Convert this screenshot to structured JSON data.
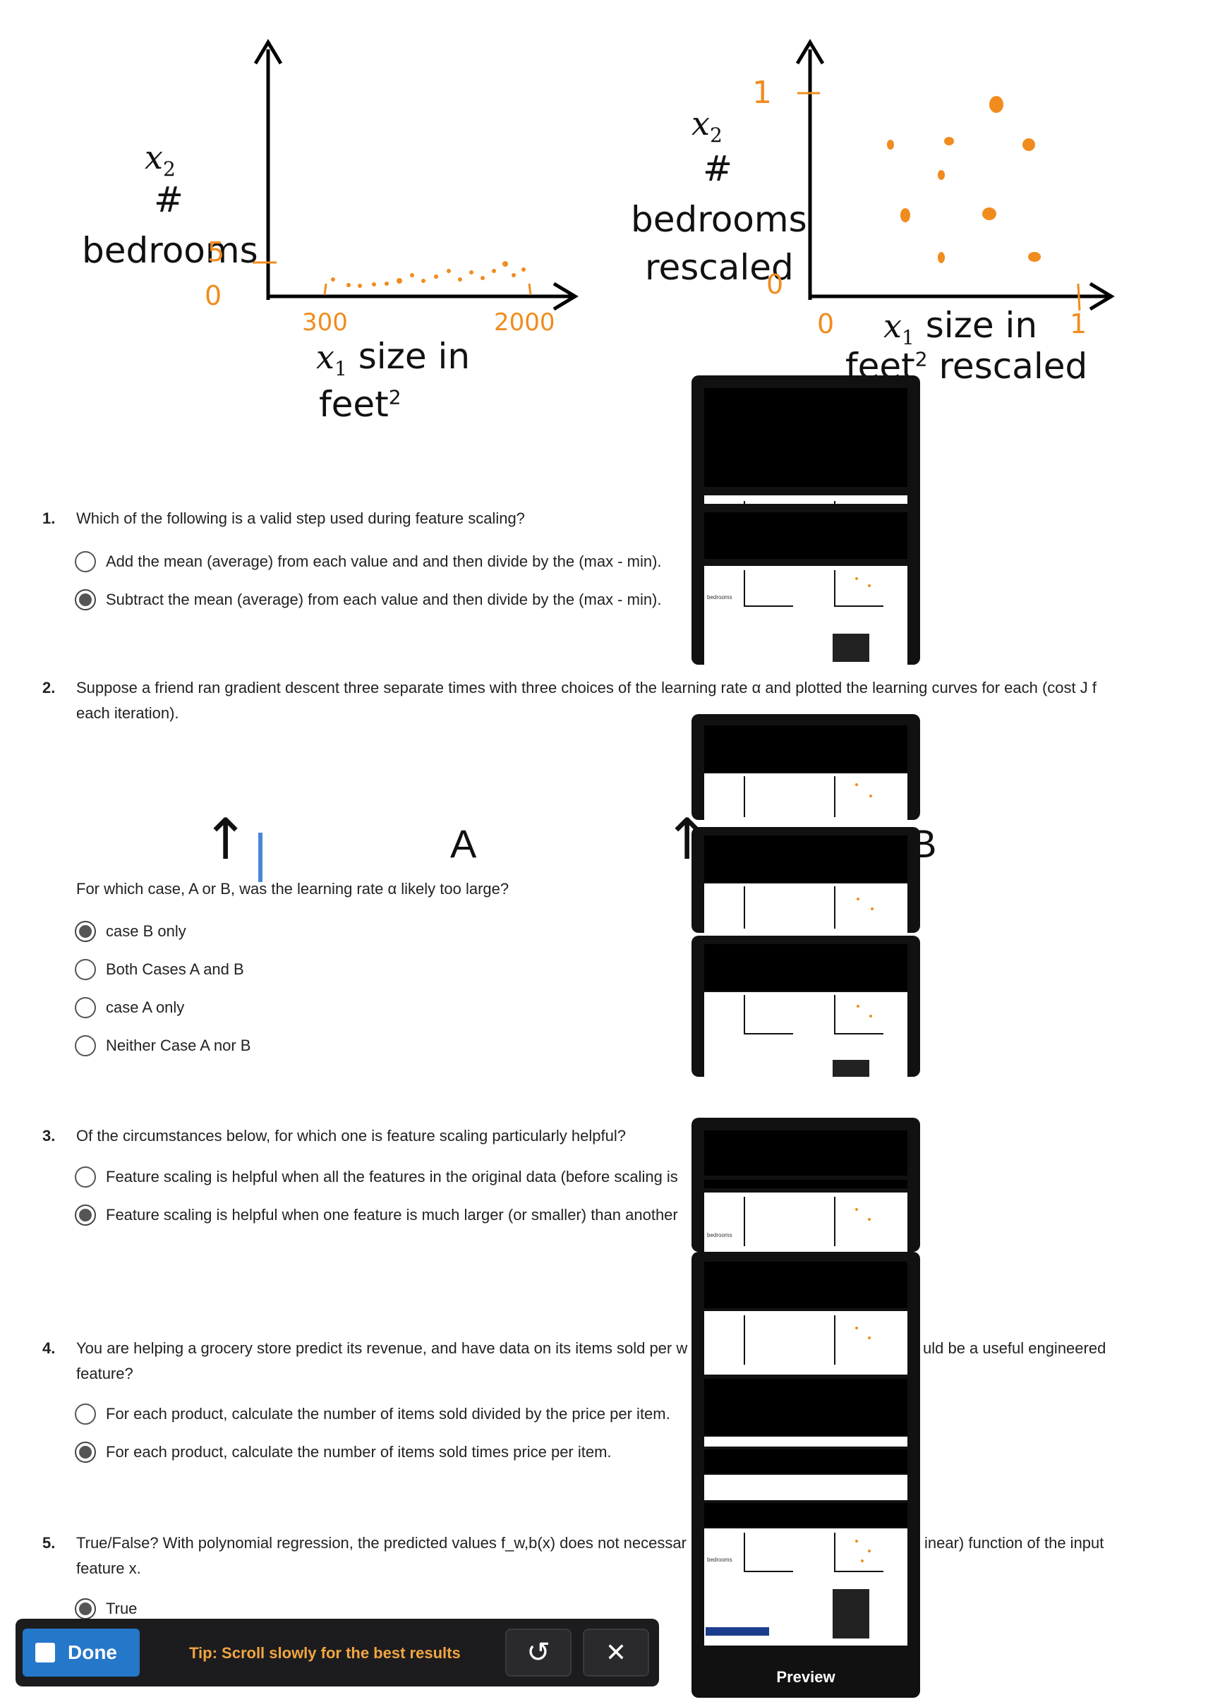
{
  "figure": {
    "left": {
      "y_var": "x",
      "y_sub": "2",
      "y_hash": "#",
      "y_label": "bedrooms",
      "x_var": "x",
      "x_sub": "1",
      "x_label_1": "size in",
      "x_label_2": "feet",
      "x_sup": "2",
      "hand_y_top": "5",
      "hand_y_zero": "0",
      "hand_x_min": "300",
      "hand_x_max": "2000"
    },
    "right": {
      "y_var": "x",
      "y_sub": "2",
      "y_hash": "#",
      "y_label_1": "bedrooms",
      "y_label_2": "rescaled",
      "x_var": "x",
      "x_sub": "1",
      "x_label_1": "size in",
      "x_label_2": "feet",
      "x_sup": "2",
      "x_label_3": "rescaled",
      "hand_y_top": "1",
      "hand_y_zero": "0",
      "hand_x_zero": "0",
      "hand_x_max": "1"
    }
  },
  "questions": {
    "q1": {
      "number": "1.",
      "text": "Which of the following is a valid step used during feature scaling?",
      "options": [
        {
          "label": "Add the mean (average) from each value and and then divide by the (max - min).",
          "checked": false
        },
        {
          "label": "Subtract the mean (average) from each value and then divide by the (max - min).",
          "checked": true
        }
      ]
    },
    "q2": {
      "number": "2.",
      "text_line1": "Suppose a friend ran gradient descent three separate times with three choices of the learning rate α and plotted the learning curves for each (cost J f",
      "text_line2": "each iteration).",
      "plot_label_a": "A",
      "plot_label_b": "B",
      "subquestion": "For which case, A or B, was the learning rate α likely too large?",
      "options": [
        {
          "label": "case B only",
          "checked": true
        },
        {
          "label": "Both Cases A and B",
          "checked": false
        },
        {
          "label": "case A only",
          "checked": false
        },
        {
          "label": "Neither Case A nor B",
          "checked": false
        }
      ]
    },
    "q3": {
      "number": "3.",
      "text": "Of the circumstances below, for which one is feature scaling particularly helpful?",
      "options": [
        {
          "label": "Feature scaling is helpful when all the features in the original data (before scaling is",
          "checked": false
        },
        {
          "label": "Feature scaling is helpful when one feature is much larger (or smaller) than another",
          "checked": true
        }
      ]
    },
    "q4": {
      "number": "4.",
      "text_line1_left": "You are helping a grocery store predict its revenue, and have data on its items sold per w",
      "text_line1_right": "uld be a useful engineered",
      "text_line2": "feature?",
      "options": [
        {
          "label": "For each product, calculate the number of items sold divided by the price per item.",
          "checked": false
        },
        {
          "label": "For each product, calculate the number of items sold times price per item.",
          "checked": true
        }
      ]
    },
    "q5": {
      "number": "5.",
      "text_line1_left": "True/False? With polynomial regression, the predicted values f_w,b(x) does not necessar",
      "text_line1_right": "inear) function of the input",
      "text_line2": "feature x.",
      "options": [
        {
          "label": "True",
          "checked": true
        }
      ]
    }
  },
  "preview": {
    "label": "Preview"
  },
  "toolbar": {
    "done_label": "Done",
    "tip": "Tip: Scroll slowly for the best results",
    "retry_icon": "↺",
    "close_icon": "✕"
  }
}
